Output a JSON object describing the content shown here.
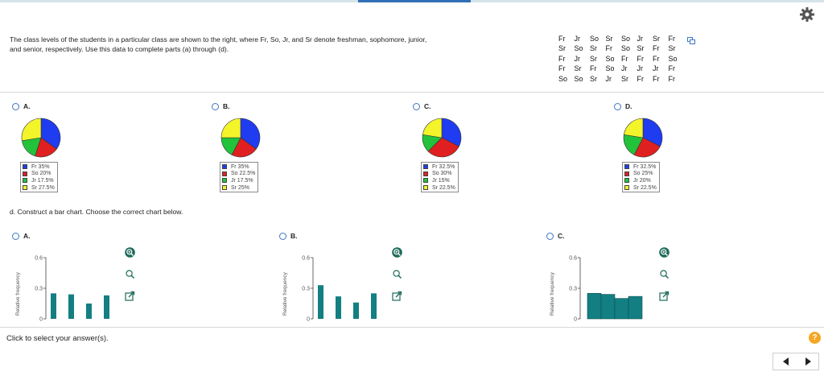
{
  "question": {
    "text": "The class levels of the students in a particular class are shown to the right, where Fr, So, Jr, and Sr denote freshman, sophomore, junior, and senior, respectively. Use this data to complete parts (a) through (d)."
  },
  "data_table": [
    [
      "Fr",
      "Jr",
      "So",
      "Sr",
      "So",
      "Jr",
      "Sr",
      "Fr"
    ],
    [
      "Sr",
      "So",
      "Sr",
      "Fr",
      "So",
      "Sr",
      "Fr",
      "Sr"
    ],
    [
      "Fr",
      "Jr",
      "Sr",
      "So",
      "Fr",
      "Fr",
      "Fr",
      "So"
    ],
    [
      "Fr",
      "Sr",
      "Fr",
      "So",
      "Jr",
      "Jr",
      "Jr",
      "Fr"
    ],
    [
      "So",
      "So",
      "Sr",
      "Jr",
      "Sr",
      "Fr",
      "Fr",
      "Fr"
    ]
  ],
  "colors": {
    "fr": "#1f3cf0",
    "so": "#e02020",
    "jr": "#22c33a",
    "sr": "#f4f42a",
    "bar": "#137f82",
    "accent": "#3a78c3"
  },
  "pie_options": [
    {
      "letter": "A.",
      "shares": [
        0.35,
        0.2,
        0.175,
        0.275
      ],
      "legend": [
        "Fr 35%",
        "So 20%",
        "Jr 17.5%",
        "Sr 27.5%"
      ]
    },
    {
      "letter": "B.",
      "shares": [
        0.35,
        0.225,
        0.175,
        0.25
      ],
      "legend": [
        "Fr 35%",
        "So 22.5%",
        "Jr 17.5%",
        "Sr 25%"
      ]
    },
    {
      "letter": "C.",
      "shares": [
        0.325,
        0.3,
        0.15,
        0.225
      ],
      "legend": [
        "Fr 32.5%",
        "So 30%",
        "Jr 15%",
        "Sr 22.5%"
      ]
    },
    {
      "letter": "D.",
      "shares": [
        0.325,
        0.25,
        0.2,
        0.225
      ],
      "legend": [
        "Fr 32.5%",
        "So 25%",
        "Jr 20%",
        "Sr 22.5%"
      ]
    }
  ],
  "part_d": {
    "text": "d. Construct a bar chart. Choose the correct chart below."
  },
  "bar_options": [
    {
      "letter": "A.",
      "ylabel": "Relative frequency",
      "ticks": [
        "0.6",
        "0.3",
        "0"
      ],
      "values": [
        0.25,
        0.24,
        0.15,
        0.23
      ]
    },
    {
      "letter": "B.",
      "ylabel": "Relative frequency",
      "ticks": [
        "0.6",
        "0.3",
        "0"
      ],
      "values": [
        0.33,
        0.22,
        0.16,
        0.25
      ]
    },
    {
      "letter": "C.",
      "ylabel": "Relative frequency",
      "ticks": [
        "0.6",
        "0.3",
        "0"
      ],
      "values": [
        0.25,
        0.24,
        0.2,
        0.22
      ]
    }
  ],
  "chart_data": [
    {
      "type": "bar",
      "ylabel": "Relative frequency",
      "ylim": [
        0,
        0.6
      ],
      "values": [
        0.25,
        0.24,
        0.15,
        0.23
      ]
    },
    {
      "type": "bar",
      "ylabel": "Relative frequency",
      "ylim": [
        0,
        0.6
      ],
      "values": [
        0.33,
        0.22,
        0.16,
        0.25
      ]
    },
    {
      "type": "bar",
      "ylabel": "Relative frequency",
      "ylim": [
        0,
        0.6
      ],
      "values": [
        0.25,
        0.24,
        0.2,
        0.22
      ]
    }
  ],
  "footer": {
    "instruction": "Click to select your answer(s).",
    "help": "?"
  },
  "icons": {
    "settings": "gear-icon",
    "copy": "copy-icon",
    "zoom_in": "zoom-in-icon",
    "zoom_out": "zoom-out-icon",
    "popout": "popout-icon",
    "prev": "prev-arrow-icon",
    "next": "next-arrow-icon"
  }
}
